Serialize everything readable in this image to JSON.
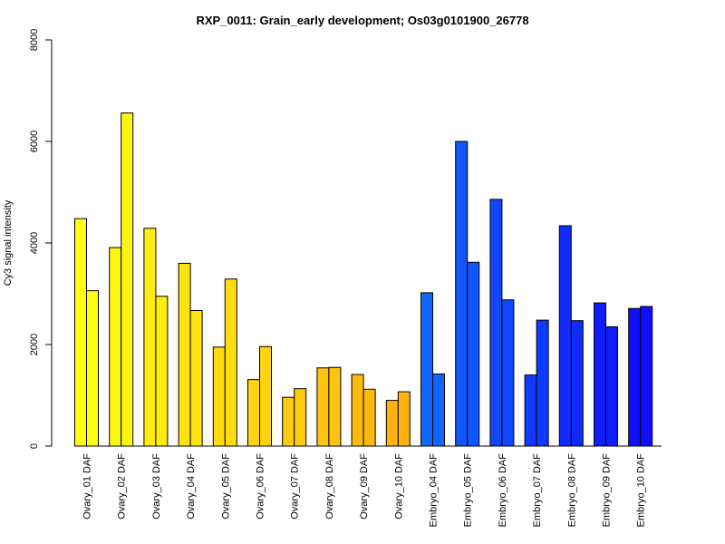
{
  "chart_data": {
    "type": "bar",
    "title": "RXP_0011: Grain_early development; Os03g0101900_26778",
    "xlabel": "",
    "ylabel": "Cy3 signal intensity",
    "ylim": [
      0,
      8000
    ],
    "yticks": [
      0,
      2000,
      4000,
      6000,
      8000
    ],
    "grid": false,
    "categories": [
      "Ovary_01 DAF",
      "Ovary_02 DAF",
      "Ovary_03 DAF",
      "Ovary_04 DAF",
      "Ovary_05 DAF",
      "Ovary_06 DAF",
      "Ovary_07 DAF",
      "Ovary_08 DAF",
      "Ovary_09 DAF",
      "Ovary_10 DAF",
      "Embryo_04 DAF",
      "Embryo_05 DAF",
      "Embryo_06 DAF",
      "Embryo_07 DAF",
      "Embryo_08 DAF",
      "Embryo_09 DAF",
      "Embryo_10 DAF"
    ],
    "colors": [
      "#ffff0f",
      "#fff60f",
      "#ffed0f",
      "#ffe40f",
      "#ffdb0f",
      "#ffd30f",
      "#ffcb0f",
      "#ffc20f",
      "#ffba0f",
      "#ffb20f",
      "#1166ff",
      "#1157ff",
      "#1148ff",
      "#0f3aff",
      "#0f2bff",
      "#0f1dff",
      "#0f0fff"
    ],
    "series": [
      {
        "values": [
          4480,
          3910,
          4290,
          3600,
          1950,
          1310,
          960,
          1540,
          1410,
          900,
          3020,
          6000,
          4860,
          1400,
          4340,
          2820,
          2710
        ]
      },
      {
        "values": [
          3060,
          6560,
          2950,
          2670,
          3290,
          1960,
          1130,
          1550,
          1120,
          1070,
          1420,
          3620,
          2880,
          2480,
          2470,
          2350,
          2750
        ]
      }
    ]
  }
}
